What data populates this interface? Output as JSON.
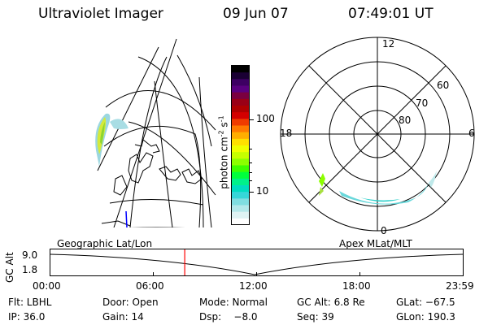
{
  "header": {
    "title": "Ultraviolet Imager",
    "date": "09 Jun 07",
    "time": "07:49:01 UT"
  },
  "colorbar": {
    "label": "photon cm",
    "label_exp1": "-2",
    "label_mid": "s",
    "label_exp2": "-1",
    "ticks": [
      "100",
      "10"
    ],
    "colors": [
      "#000000",
      "#1a0033",
      "#3d0063",
      "#5a0080",
      "#7a0040",
      "#9a0016",
      "#b00000",
      "#d40000",
      "#ef3b00",
      "#ff7a00",
      "#ffae00",
      "#ffe000",
      "#f0ff00",
      "#c6ff00",
      "#8cff00",
      "#3dff00",
      "#00ff3c",
      "#00f08a",
      "#00dcc0",
      "#36d6d8",
      "#7fdde0",
      "#b3e8ea",
      "#dff3f4",
      "#ffffff"
    ]
  },
  "polar": {
    "mlt_labels": [
      "12",
      "18",
      "6",
      "0"
    ],
    "lat_labels": [
      "60",
      "70",
      "80"
    ]
  },
  "timeline": {
    "ylabel": "GC Alt",
    "yticks": [
      "9.0",
      "1.8"
    ],
    "left_label": "Geographic Lat/Lon",
    "right_label": "Apex MLat/MLT",
    "xticks": [
      "00:00",
      "06:00",
      "12:00",
      "18:00",
      "23:59"
    ],
    "marker_fraction": 0.3257
  },
  "info": {
    "filter": "Flt: LBHL",
    "door": "Door: Open",
    "mode": "Mode: Normal",
    "gc_alt": "GC Alt: 6.8 Re",
    "glat": "GLat: −67.5",
    "ip": "IP: 36.0",
    "gain": "Gain: 14",
    "dsp": "Dsp:    −8.0",
    "seq": "Seq: 39",
    "glon": "GLon: 190.3"
  }
}
